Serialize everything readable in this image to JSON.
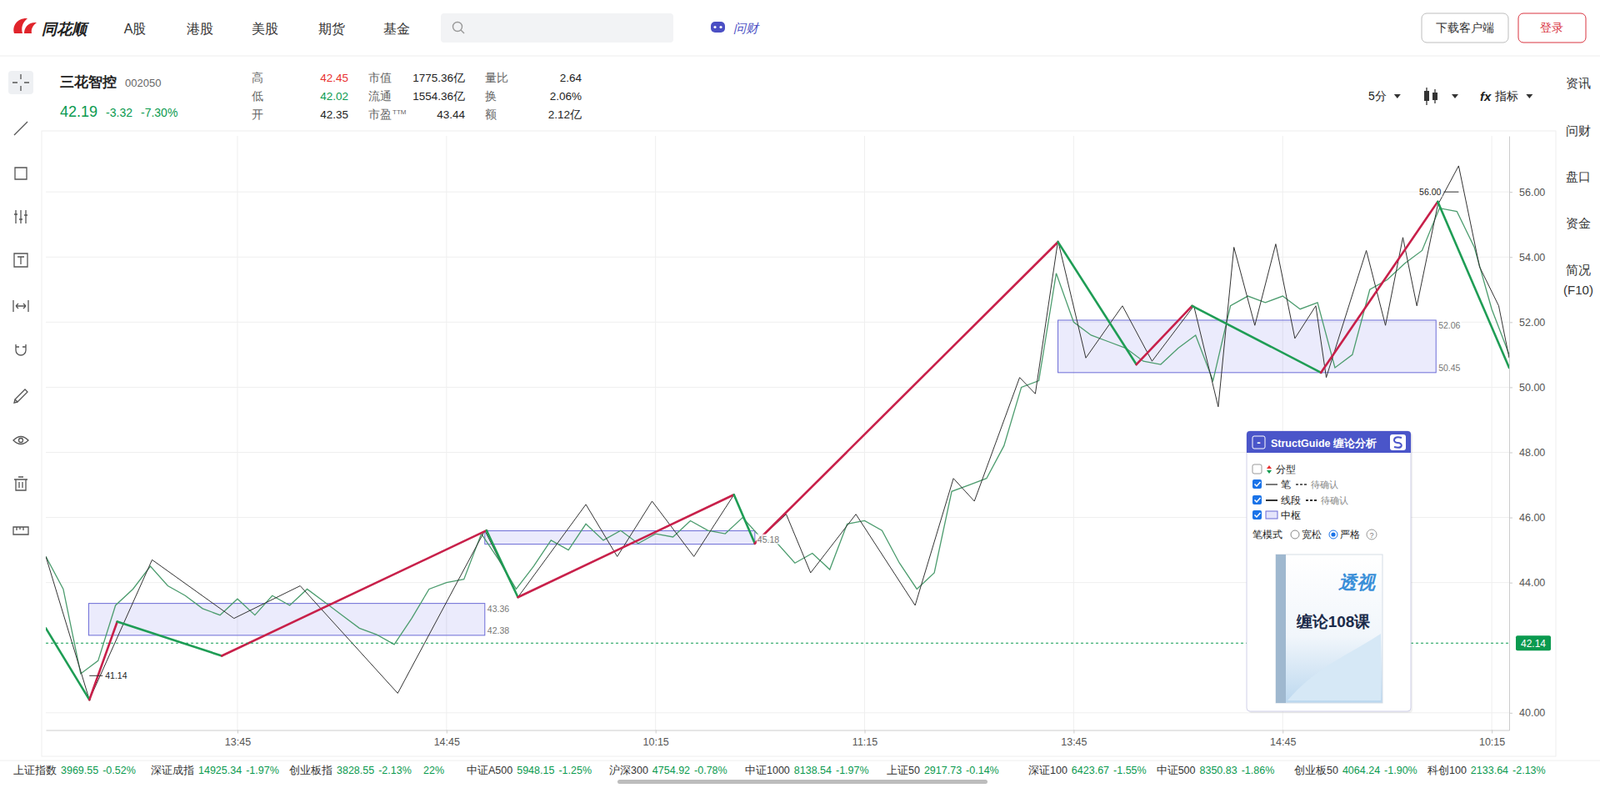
{
  "nav": {
    "logo": "同花顺",
    "items": [
      "A股",
      "港股",
      "美股",
      "期货",
      "基金"
    ],
    "ask": "问财",
    "download": "下载客户端",
    "login": "登录"
  },
  "quote": {
    "name": "三花智控",
    "code": "002050",
    "price": "42.19",
    "change": "-3.32",
    "change_pct": "-7.30%",
    "stats": [
      [
        {
          "label": "高",
          "value": "42.45",
          "color": "#e93030"
        },
        {
          "label": "低",
          "value": "42.02",
          "color": "#0a9a4f"
        },
        {
          "label": "开",
          "value": "42.35"
        }
      ],
      [
        {
          "label": "市值",
          "value": "1775.36亿"
        },
        {
          "label": "流通",
          "value": "1554.36亿"
        },
        {
          "label": "市盈",
          "sup": "TTM",
          "value": "43.44"
        }
      ],
      [
        {
          "label": "量比",
          "value": "2.64"
        },
        {
          "label": "换",
          "value": "2.06%"
        },
        {
          "label": "额",
          "value": "2.12亿"
        }
      ]
    ]
  },
  "controls": {
    "period": "5分",
    "fx": "fx",
    "indicator": "指标"
  },
  "sidebar": [
    "资讯",
    "问财",
    "盘口",
    "资金",
    "简况(F10)"
  ],
  "chart_data": {
    "type": "line",
    "categories": [
      null,
      null,
      null,
      null,
      null,
      null,
      null,
      null,
      null,
      null,
      null,
      "13:45",
      null,
      null,
      null,
      null,
      null,
      null,
      null,
      null,
      null,
      null,
      null,
      "14:45",
      null,
      null,
      null,
      null,
      null,
      null,
      null,
      null,
      null,
      null,
      null,
      "10:15",
      null,
      null,
      null,
      null,
      null,
      null,
      null,
      null,
      null,
      null,
      null,
      "11:15",
      null,
      null,
      null,
      null,
      null,
      null,
      null,
      null,
      null,
      null,
      null,
      "13:45",
      null,
      null,
      null,
      null,
      null,
      null,
      null,
      null,
      null,
      null,
      null,
      "14:45",
      null,
      null,
      null,
      null,
      null,
      null,
      null,
      null,
      null,
      null,
      null,
      "10:15",
      null
    ],
    "ylim": [
      39.47,
      57.72
    ],
    "yticks": [
      {
        "value": 40,
        "label": "40.00"
      },
      {
        "value": 44,
        "label": "44.00"
      },
      {
        "value": 46,
        "label": "46.00"
      },
      {
        "value": 48,
        "label": "48.00"
      },
      {
        "value": 50,
        "label": "50.00"
      },
      {
        "value": 52,
        "label": "52.00"
      },
      {
        "value": 54,
        "label": "54.00"
      },
      {
        "value": 56,
        "label": "56.00"
      }
    ],
    "grid": true,
    "series": [
      {
        "type": "line",
        "color": "#4c9c6e",
        "values": [
          44.8,
          43.8,
          41.2,
          41.6,
          43.3,
          43.8,
          44.5,
          43.9,
          43.6,
          43.2,
          43.0,
          43.5,
          43.0,
          43.6,
          43.3,
          43.8,
          43.4,
          43.0,
          42.6,
          42.4,
          42.1,
          42.9,
          43.8,
          44.0,
          44.1,
          45.5,
          44.7,
          43.8,
          44.5,
          45.3,
          45.0,
          45.8,
          45.3,
          45.6,
          45.2,
          45.5,
          45.4,
          45.9,
          45.6,
          45.5,
          46.0,
          45.4,
          45.2,
          44.6,
          44.9,
          44.4,
          45.8,
          45.9,
          45.6,
          44.6,
          43.8,
          44.3,
          46.8,
          47.0,
          47.2,
          48.2,
          50.0,
          50.2,
          53.5,
          52.0,
          51.6,
          51.4,
          51.2,
          50.8,
          50.7,
          51.2,
          51.6,
          50.2,
          52.5,
          52.8,
          52.6,
          52.8,
          52.4,
          52.6,
          50.6,
          51.0,
          53.0,
          53.3,
          53.8,
          54.2,
          55.5,
          55.4,
          54.3,
          52.4,
          51.0
        ]
      },
      {
        "type": "line",
        "color": "#333333",
        "x": [
          0,
          2.5,
          6.1,
          10.8,
          14.6,
          20.2,
          25.2,
          27.1,
          31,
          32.8,
          34.8,
          37.2,
          39.5,
          40.7,
          42.5,
          43.9,
          46.5,
          49.9,
          52.1,
          53.3,
          55.9,
          56.8,
          58.1,
          59.7,
          61.8,
          63.5,
          65.9,
          67.3,
          68.2,
          69.4,
          70.6,
          71.7,
          72.9,
          73.5,
          75.8,
          76.9,
          77.9,
          78.7,
          79.9,
          81.1,
          82.3,
          83.4,
          84
        ],
        "values": [
          44.8,
          40.4,
          44.7,
          42.9,
          43.9,
          40.6,
          45.6,
          43.55,
          46.4,
          44.8,
          46.5,
          44.8,
          46.7,
          45.2,
          46.1,
          44.3,
          46.1,
          43.3,
          47.2,
          46.5,
          50.3,
          49.8,
          54.5,
          50.9,
          52.5,
          50.8,
          52.5,
          49.4,
          54.3,
          51.9,
          54.4,
          51.5,
          52.5,
          50.3,
          54.2,
          51.9,
          54.6,
          52.5,
          55.6,
          56.8,
          53.7,
          52.5,
          50.9
        ]
      },
      {
        "type": "line",
        "colors": [
          "#1f9d55",
          "#c8204a",
          "#1f9d55",
          "#c8204a",
          "#1f9d55",
          "#c8204a",
          "#1f9d55",
          "#c8204a",
          "#1f9d55",
          "#c8204a",
          "#1f9d55",
          "#c8204a",
          "#1f9d55"
        ],
        "x": [
          0,
          2.5,
          4.1,
          10.1,
          25.3,
          27.1,
          39.5,
          40.7,
          58.1,
          62.6,
          65.8,
          73.2,
          79.9,
          84
        ],
        "values": [
          42.6,
          40.4,
          42.8,
          41.75,
          45.6,
          43.55,
          46.7,
          45.2,
          54.46,
          50.7,
          52.5,
          50.45,
          55.7,
          50.6
        ]
      }
    ],
    "boxes": [
      {
        "start": 2.46,
        "end": 25.2,
        "high": 43.36,
        "low": 42.38,
        "high_label": "43.36",
        "low_label": "42.38"
      },
      {
        "start": 25.2,
        "end": 40.7,
        "high": 45.59,
        "low": 45.18,
        "low_label": "45.18"
      },
      {
        "start": 58.1,
        "end": 79.8,
        "high": 52.06,
        "low": 50.45,
        "high_label": "52.06",
        "low_label": "50.45"
      }
    ],
    "last_price": {
      "value": 42.14,
      "label": "42.14"
    },
    "annotations": [
      {
        "x": 2.5,
        "value": 41.14,
        "label": "41.14"
      },
      {
        "x": 81.1,
        "value": 56.0,
        "label": "56.00"
      }
    ]
  },
  "panel": {
    "title": "StructGuide 缠论分析",
    "collapse": "-",
    "toggles": [
      {
        "label": "分型",
        "checked": false
      },
      {
        "label": "笔",
        "checked": true,
        "pending": "待确认"
      },
      {
        "label": "线段",
        "checked": true,
        "pending": "待确认"
      },
      {
        "label": "中枢",
        "checked": true
      }
    ],
    "mode_label": "笔模式",
    "modes": [
      {
        "label": "宽松",
        "selected": false
      },
      {
        "label": "严格",
        "selected": true
      }
    ],
    "help": "?",
    "book": [
      "透视",
      "缠论108课"
    ]
  },
  "ticker": [
    {
      "name": "上证指数",
      "value": "3969.55",
      "change": "-0.52%"
    },
    {
      "name": "深证成指",
      "value": "14925.34",
      "change": "-1.97%"
    },
    {
      "name": "创业板指",
      "value": "3828.55",
      "change": "-2.13%"
    },
    {
      "change": "22%"
    },
    {
      "name": "中证A500",
      "value": "5948.15",
      "change": "-1.25%"
    },
    {
      "name": "沪深300",
      "value": "4754.92",
      "change": "-0.78%"
    },
    {
      "name": "中证1000",
      "value": "8138.54",
      "change": "-1.97%"
    },
    {
      "name": "上证50",
      "value": "2917.73",
      "change": "-0.14%"
    },
    {
      "name": "深证100",
      "value": "6423.67",
      "change": "-1.55%"
    },
    {
      "name": "中证500",
      "value": "8350.83",
      "change": "-1.86%"
    },
    {
      "name": "创业板50",
      "value": "4064.24",
      "change": "-1.90%"
    },
    {
      "name": "科创100",
      "value": "2133.64",
      "change": "-2.13%"
    }
  ]
}
